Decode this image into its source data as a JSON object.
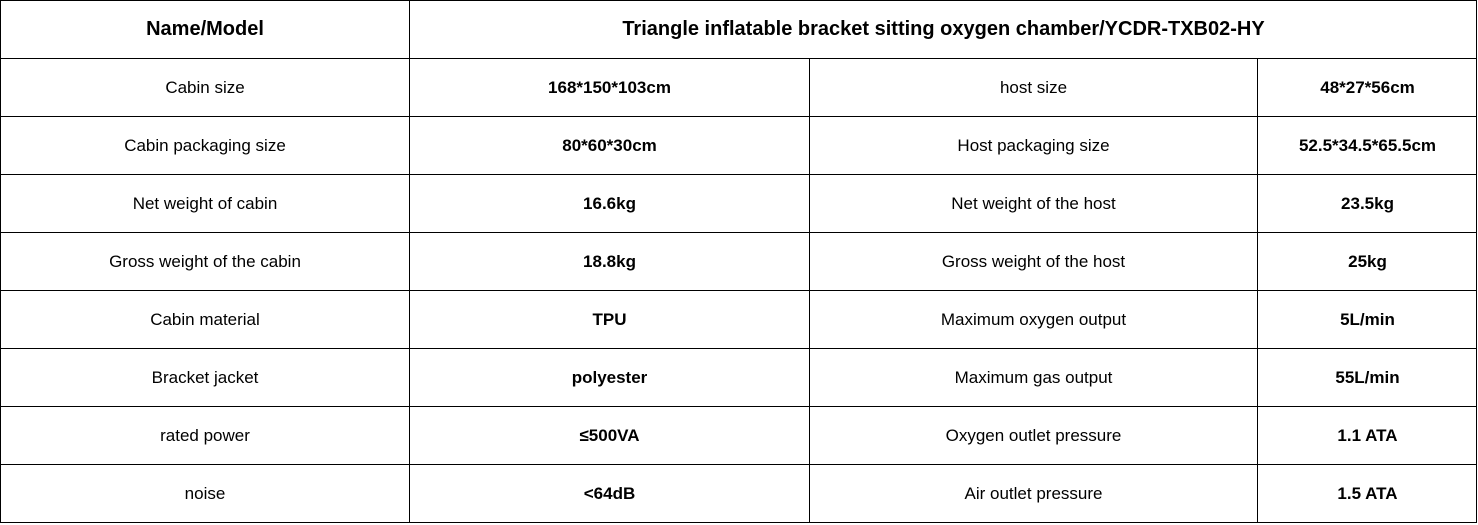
{
  "table": {
    "header": [
      "Name/Model",
      "Triangle inflatable bracket sitting oxygen chamber/YCDR-TXB02-HY"
    ],
    "rows": [
      [
        "Cabin size",
        "168*150*103cm",
        "host size",
        "48*27*56cm"
      ],
      [
        "Cabin packaging size",
        "80*60*30cm",
        "Host packaging size",
        "52.5*34.5*65.5cm"
      ],
      [
        "Net weight of cabin",
        "16.6kg",
        "Net weight of the host",
        "23.5kg"
      ],
      [
        "Gross weight of the cabin",
        "18.8kg",
        "Gross weight of the host",
        "25kg"
      ],
      [
        "Cabin material",
        "TPU",
        "Maximum oxygen output",
        "5L/min"
      ],
      [
        "Bracket jacket",
        "polyester",
        "Maximum gas output",
        "55L/min"
      ],
      [
        "rated power",
        "≤500VA",
        "Oxygen outlet pressure",
        "1.1 ATA"
      ],
      [
        "noise",
        "<64dB",
        "Air outlet pressure",
        "1.5 ATA"
      ]
    ]
  }
}
